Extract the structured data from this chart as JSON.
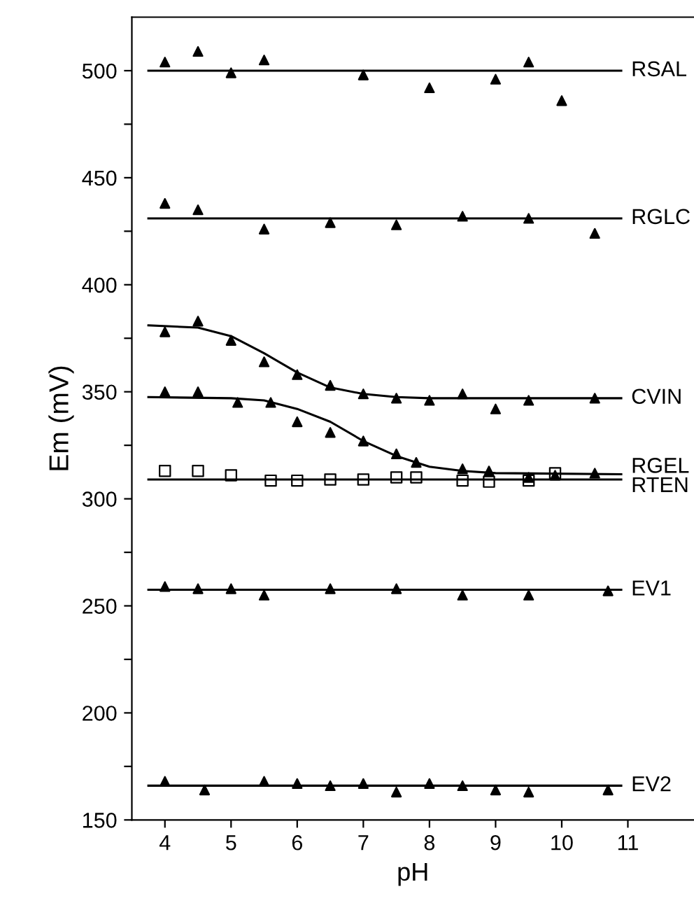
{
  "chart_data": {
    "type": "scatter",
    "xlabel": "pH",
    "ylabel": "Em (mV)",
    "xlim": [
      3.5,
      12
    ],
    "xticks": [
      4,
      5,
      6,
      7,
      8,
      9,
      10,
      11
    ],
    "ylim": [
      150,
      525
    ],
    "yticks": [
      150,
      {
        "value": 175,
        "label": null
      },
      200,
      {
        "value": 225,
        "label": null
      },
      250,
      {
        "value": 275,
        "label": null
      },
      300,
      {
        "value": 325,
        "label": null
      },
      350,
      {
        "value": 375,
        "label": null
      },
      400,
      {
        "value": 425,
        "label": null
      },
      450,
      {
        "value": 475,
        "label": null
      },
      500
    ],
    "grid": false,
    "legend": false,
    "series": [
      {
        "marker": "triangle",
        "color": "#000000",
        "x": [
          4,
          4.5,
          5,
          5.5,
          7,
          8,
          9,
          9.5,
          10
        ],
        "values": [
          504,
          509,
          499,
          505,
          498,
          492,
          496,
          504,
          486
        ]
      },
      {
        "type": "line",
        "name": "RSAL",
        "color": "#000000",
        "x": [
          3.75,
          10.9
        ],
        "values": [
          500,
          500
        ]
      },
      {
        "marker": "triangle",
        "color": "#000000",
        "x": [
          4,
          4.5,
          5.5,
          6.5,
          7.5,
          8.5,
          9.5,
          10.5
        ],
        "values": [
          438,
          435,
          426,
          429,
          428,
          432,
          431,
          424
        ]
      },
      {
        "type": "line",
        "name": "RGLC",
        "color": "#000000",
        "x": [
          3.75,
          10.9
        ],
        "values": [
          431,
          431
        ]
      },
      {
        "marker": "triangle",
        "color": "#000000",
        "x": [
          4,
          4.5,
          5,
          5.5,
          6,
          6.5,
          7,
          7.5,
          8,
          8.5,
          9,
          9.5,
          10.5
        ],
        "values": [
          378,
          383,
          374,
          364,
          358,
          353,
          349,
          347,
          346,
          349,
          342,
          346,
          347
        ]
      },
      {
        "type": "line",
        "name": "CVIN",
        "color": "#000000",
        "x": [
          3.75,
          4.5,
          5,
          5.5,
          6,
          6.5,
          7,
          7.5,
          8,
          9,
          10.9
        ],
        "values": [
          381,
          380,
          376,
          368,
          359,
          352,
          349,
          347.5,
          347,
          347,
          347
        ]
      },
      {
        "marker": "triangle",
        "color": "#000000",
        "x": [
          4,
          4.5,
          5.1,
          5.6,
          6,
          6.5,
          7,
          7.5,
          7.8,
          8.5,
          8.9,
          9.5,
          9.9,
          10.5
        ],
        "values": [
          350,
          350,
          345,
          345,
          336,
          331,
          327,
          321,
          317,
          314,
          313,
          310,
          311,
          312
        ]
      },
      {
        "type": "line",
        "name": "RGEL",
        "color": "#000000",
        "x": [
          3.75,
          5,
          5.5,
          6,
          6.5,
          7,
          7.5,
          8,
          8.5,
          9,
          10.9
        ],
        "values": [
          347.5,
          347,
          346,
          342,
          336,
          327,
          320,
          315,
          313,
          312,
          311.5
        ]
      },
      {
        "marker": "square",
        "color": "#000000",
        "x": [
          4,
          4.5,
          5,
          5.6,
          6,
          6.5,
          7,
          7.5,
          7.8,
          8.5,
          8.9,
          9.5,
          9.9
        ],
        "values": [
          313,
          313,
          311,
          308.5,
          308.5,
          309,
          309,
          310,
          310,
          308.5,
          308,
          308.5,
          312
        ]
      },
      {
        "type": "line",
        "name": "RTEN",
        "color": "#000000",
        "x": [
          3.75,
          10.9
        ],
        "values": [
          309,
          309
        ]
      },
      {
        "marker": "triangle",
        "color": "#000000",
        "x": [
          4,
          4.5,
          5,
          5.5,
          6.5,
          7.5,
          8.5,
          9.5,
          10.7
        ],
        "values": [
          259,
          258,
          258,
          255,
          258,
          258,
          255,
          255,
          257
        ]
      },
      {
        "type": "line",
        "name": "EV1",
        "color": "#000000",
        "x": [
          3.75,
          10.9
        ],
        "values": [
          257.5,
          257.5
        ]
      },
      {
        "marker": "triangle",
        "color": "#000000",
        "x": [
          4,
          4.6,
          5.5,
          6,
          6.5,
          7,
          7.5,
          8,
          8.5,
          9,
          9.5,
          10.7
        ],
        "values": [
          168,
          164,
          168,
          167,
          166,
          167,
          163,
          167,
          166,
          164,
          163,
          164
        ]
      },
      {
        "type": "line",
        "name": "EV2",
        "color": "#000000",
        "x": [
          3.75,
          10.9
        ],
        "values": [
          166,
          166
        ]
      }
    ]
  }
}
